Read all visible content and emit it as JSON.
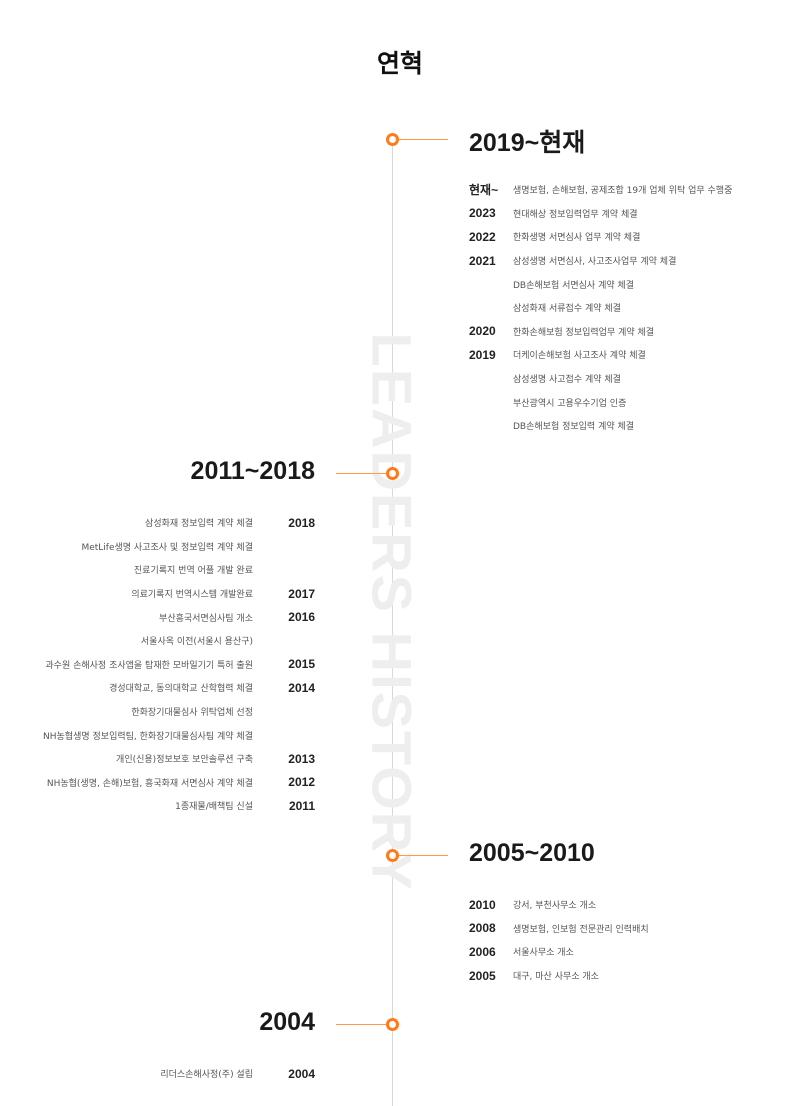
{
  "title": "연혁",
  "watermark": "LEADERS HISTORY",
  "accent_color": "#ff7a1a",
  "sections": [
    {
      "period": "2019~현재",
      "items": [
        {
          "year": "현재~",
          "text": "생명보험, 손해보험, 공제조합 19개 업체 위탁 업무 수행중"
        },
        {
          "year": "2023",
          "text": "현대해상 정보입력업무 계약 체결"
        },
        {
          "year": "2022",
          "text": "한화생명 서면심사 업무 계약 체결"
        },
        {
          "year": "2021",
          "text": "삼성생명 서면심사, 사고조사업무 계약 체결"
        },
        {
          "year": "",
          "text": "DB손해보험 서면심사 계약 체결"
        },
        {
          "year": "",
          "text": "삼성화재 서류접수 계약 체결"
        },
        {
          "year": "2020",
          "text": "한화손해보험 정보입력업무 계약 체결"
        },
        {
          "year": "2019",
          "text": "더케이손해보험 사고조사 계약 체결"
        },
        {
          "year": "",
          "text": "삼성생명 사고접수 계약 체결"
        },
        {
          "year": "",
          "text": "부산광역시 고용우수기업 인증"
        },
        {
          "year": "",
          "text": "DB손해보험 정보입력 계약 체결"
        }
      ]
    },
    {
      "period": "2011~2018",
      "items": [
        {
          "year": "2018",
          "text": "삼성화재 정보입력 계약 체결"
        },
        {
          "year": "",
          "text": "MetLife생명 사고조사 및 정보입력 계약 체결"
        },
        {
          "year": "",
          "text": "진료기록지 번역 어플 개발 완료"
        },
        {
          "year": "2017",
          "text": "의료기록지 번역시스템 개발완료"
        },
        {
          "year": "2016",
          "text": "부산흥국서면심사팀 개소"
        },
        {
          "year": "",
          "text": "서울사옥 이전(서울시 용산구)"
        },
        {
          "year": "2015",
          "text": "과수원 손해사정 조사앱을 탑재한 모바일기기 특허 출원"
        },
        {
          "year": "2014",
          "text": "경성대학교, 동의대학교 산학협력 체결"
        },
        {
          "year": "",
          "text": "한화장기대물심사 위탁업체 선정"
        },
        {
          "year": "",
          "text": "NH농협생명 정보입력팀, 한화장기대물심사팀 계약 체결"
        },
        {
          "year": "2013",
          "text": "개인(신용)정보보호 보안솔루션 구축"
        },
        {
          "year": "2012",
          "text": "NH농협(생명, 손해)보험, 흥국화재 서면심사 계약 체결"
        },
        {
          "year": "2011",
          "text": "1종재물/배책팀 신설"
        }
      ]
    },
    {
      "period": "2005~2010",
      "items": [
        {
          "year": "2010",
          "text": "강서, 부천사무소 개소"
        },
        {
          "year": "2008",
          "text": "생명보험, 인보험 전문관리 인력배치"
        },
        {
          "year": "2006",
          "text": "서울사무소 개소"
        },
        {
          "year": "2005",
          "text": "대구, 마산 사무소 개소"
        }
      ]
    },
    {
      "period": "2004",
      "items": [
        {
          "year": "2004",
          "text": "리더스손해사정(주) 설립"
        }
      ]
    }
  ]
}
